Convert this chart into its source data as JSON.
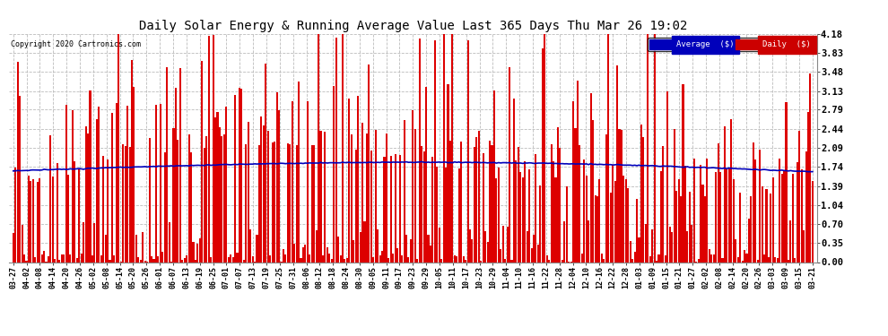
{
  "title": "Daily Solar Energy & Running Average Value Last 365 Days Thu Mar 26 19:02",
  "copyright": "Copyright 2020 Cartronics.com",
  "legend_labels": [
    "Average  ($)",
    "Daily  ($)"
  ],
  "legend_colors": [
    "#0000bb",
    "#cc0000"
  ],
  "yticks": [
    0.0,
    0.35,
    0.7,
    1.04,
    1.39,
    1.74,
    2.09,
    2.44,
    2.79,
    3.13,
    3.48,
    3.83,
    4.18
  ],
  "ymax": 4.18,
  "ymin": 0.0,
  "bar_color": "#dd0000",
  "avg_color": "#0000bb",
  "bg_color": "#ffffff",
  "grid_color": "#bbbbbb",
  "title_fontsize": 10,
  "avg_linewidth": 1.2,
  "xtick_labels": [
    "03-27",
    "04-02",
    "04-08",
    "04-14",
    "04-20",
    "04-26",
    "05-02",
    "05-08",
    "05-14",
    "05-20",
    "05-26",
    "06-01",
    "06-07",
    "06-13",
    "06-19",
    "06-25",
    "07-01",
    "07-07",
    "07-13",
    "07-19",
    "07-25",
    "07-31",
    "08-06",
    "08-12",
    "08-18",
    "08-24",
    "08-30",
    "09-05",
    "09-11",
    "09-17",
    "09-23",
    "09-29",
    "10-05",
    "10-11",
    "10-17",
    "10-23",
    "10-29",
    "11-04",
    "11-10",
    "11-16",
    "11-22",
    "11-28",
    "12-04",
    "12-10",
    "12-16",
    "12-22",
    "12-28",
    "01-03",
    "01-09",
    "01-15",
    "01-21",
    "01-27",
    "02-02",
    "02-08",
    "02-14",
    "02-20",
    "02-26",
    "03-03",
    "03-09",
    "03-15",
    "03-21"
  ]
}
